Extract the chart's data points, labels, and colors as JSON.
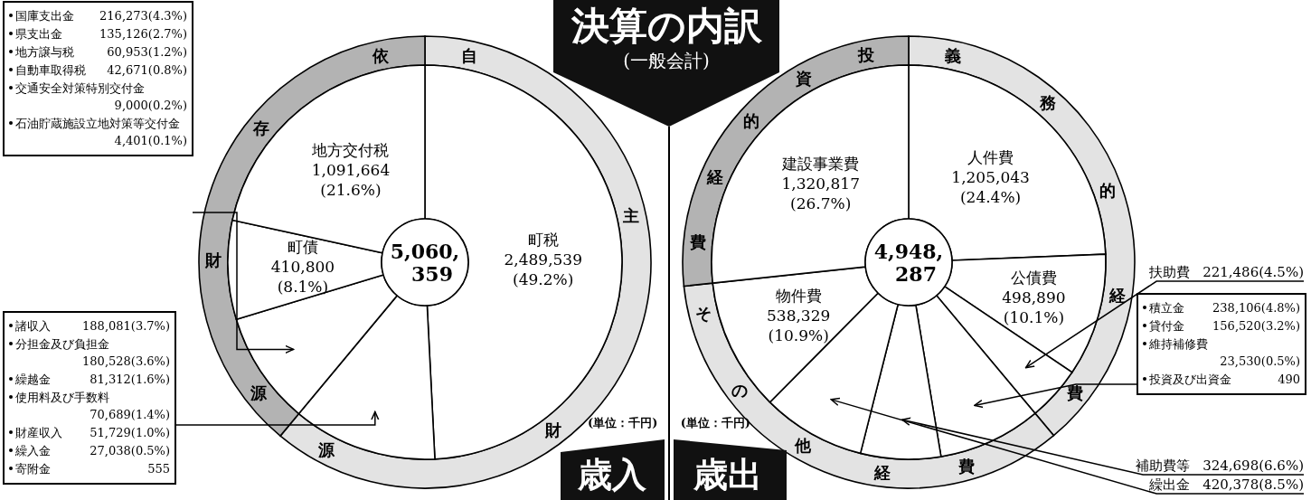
{
  "chart_data": [
    {
      "type": "donut",
      "title": "決算の内訳",
      "subtitle": "(一般会計)",
      "categories": [
        "町税",
        null,
        null,
        "町債",
        "地方交付税"
      ],
      "values": [
        2489539,
        599932,
        468424,
        410800,
        1091664
      ],
      "colors": [
        "#ffffff",
        "#ffffff",
        "#ffffff",
        "#ffffff",
        "#ffffff"
      ],
      "value_labels": [
        "2,489,539 (49.2%)",
        null,
        null,
        "410,800 (8.1%)",
        "1,091,664 (21.6%)"
      ],
      "annotations": [
        "歳入",
        "(単位：千円)",
        "5,060,359"
      ]
    },
    {
      "type": "donut",
      "categories": [
        "自主財源",
        "依存財源"
      ],
      "values": [
        61.05,
        38.95
      ],
      "colors": [
        "#e3e3e3",
        "#b3b3b3"
      ]
    },
    {
      "type": "other",
      "annotations": [
        "国庫支出金",
        "216,273(4.3%)",
        "県支出金",
        "135,126(2.7%)",
        "地方譲与税",
        "60,953(1.2%)",
        "自動車取得税",
        "42,671(0.8%)",
        "交通安全対策特別交付金",
        "9,000(0.2%)",
        "石油貯蔵施設立地対策等交付金",
        "4,401(0.1%)"
      ]
    },
    {
      "type": "other",
      "annotations": [
        "諸収入",
        "188,081(3.7%)",
        "分担金及び負担金",
        "180,528(3.6%)",
        "繰越金",
        "81,312(1.6%)",
        "使用料及び手数料",
        "70,689(1.4%)",
        "財産収入",
        "51,729(1.0%)",
        "繰入金",
        "27,038(0.5%)",
        "寄附金",
        "555"
      ]
    },
    {
      "type": "donut",
      "categories": [
        "人件費",
        "公債費",
        "扶助費",
        null,
        "補助費等",
        "繰出金",
        "物件費",
        "建設事業費"
      ],
      "values": [
        1205043,
        498890,
        221486,
        418646,
        324698,
        420378,
        538329,
        1320817
      ],
      "colors": [
        "#ffffff",
        "#ffffff",
        "#ffffff",
        "#ffffff",
        "#ffffff",
        "#ffffff",
        "#ffffff",
        "#ffffff"
      ],
      "value_labels": [
        "1,205,043 (24.4%)",
        "498,890 (10.1%)",
        "221,486(4.5%)",
        null,
        "324,698(6.6%)",
        "420,378(8.5%)",
        "538,329 (10.9%)",
        "1,320,817 (26.7%)"
      ],
      "annotations": [
        "歳出",
        "(単位：千円)",
        "4,948,287"
      ]
    },
    {
      "type": "donut",
      "categories": [
        "義務的経費",
        "その他経費",
        "投資的経費"
      ],
      "values": [
        38.91,
        34.4,
        26.69
      ],
      "colors": [
        "#e3e3e3",
        "#e3e3e3",
        "#b3b3b3"
      ]
    },
    {
      "type": "other",
      "annotations": [
        "積立金",
        "238,106(4.8%)",
        "貸付金",
        "156,520(3.2%)",
        "維持補修費",
        "23,530(0.5%)",
        "投資及び出資金",
        "490"
      ]
    }
  ]
}
